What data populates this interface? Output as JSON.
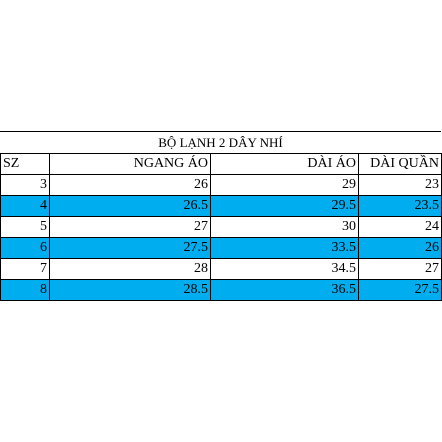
{
  "title": "BỘ LẠNH 2 DÂY NHÍ",
  "headers": [
    "SZ",
    "NGANG ÁO",
    "DÀI ÁO",
    "DÀI QUẦN"
  ],
  "rows": [
    [
      "3",
      "26",
      "29",
      "23"
    ],
    [
      "4",
      "26.5",
      "29.5",
      "23.5"
    ],
    [
      "5",
      "27",
      "30",
      "24"
    ],
    [
      "6",
      "27.5",
      "33.5",
      "26"
    ],
    [
      "7",
      "28",
      "34.5",
      "27"
    ],
    [
      "8",
      "28.5",
      "36.5",
      "27.5"
    ]
  ],
  "highlight_color": "#00aeef"
}
